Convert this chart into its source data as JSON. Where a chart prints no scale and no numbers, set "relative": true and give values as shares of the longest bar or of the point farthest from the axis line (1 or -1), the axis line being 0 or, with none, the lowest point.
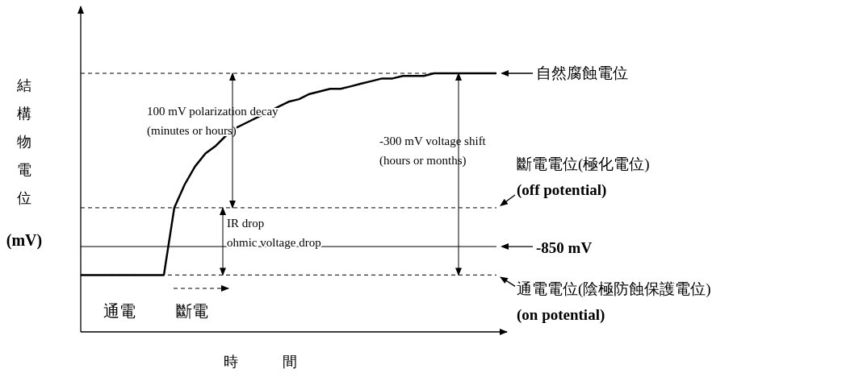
{
  "chart_data": {
    "type": "line",
    "relative": true,
    "xlabel": "時間",
    "ylabel": "結構物電位\n(mV)",
    "categories": [
      null,
      null,
      null,
      null,
      null,
      null,
      null,
      null,
      null,
      null,
      null,
      null,
      null,
      null,
      null,
      null,
      null,
      null,
      null,
      null,
      null,
      null,
      null,
      null,
      null,
      null,
      null,
      null,
      null,
      null,
      null,
      null,
      null,
      null,
      null,
      null,
      null,
      null,
      null,
      null,
      null
    ],
    "series": [
      {
        "color": "#000000",
        "line_style": "solid",
        "values": [
          0.22,
          0.22,
          0.22,
          0.22,
          0.22,
          0.22,
          0.22,
          0.22,
          0.22,
          0.48,
          0.57,
          0.64,
          0.69,
          0.72,
          0.76,
          0.79,
          0.81,
          0.83,
          0.85,
          0.87,
          0.89,
          0.9,
          0.92,
          0.93,
          0.94,
          0.94,
          0.95,
          0.96,
          0.97,
          0.98,
          0.98,
          0.99,
          0.99,
          0.99,
          1,
          1,
          1,
          1,
          1,
          1,
          1
        ]
      }
    ],
    "ref_lines": [
      {
        "axis": "y",
        "value": 1,
        "label": "自然腐蝕電位",
        "line_style": "dashed"
      },
      {
        "axis": "y",
        "value": 0.48,
        "label": "斷電電位(極化電位)\n(off potential)",
        "line_style": "dashed"
      },
      {
        "axis": "y",
        "value": 0.33,
        "label": "-850 mV",
        "line_style": "solid"
      },
      {
        "axis": "y",
        "value": 0.22,
        "label": "通電電位(陰極防蝕保護電位)\n(on potential)",
        "line_style": "dashed"
      }
    ],
    "annotations": [
      "100 mV polarization decay\n(minutes or hours)",
      "-300 mV voltage shift\n(hours or months)",
      "IR drop\nohmic voltage drop",
      "通電",
      "斷電"
    ]
  }
}
